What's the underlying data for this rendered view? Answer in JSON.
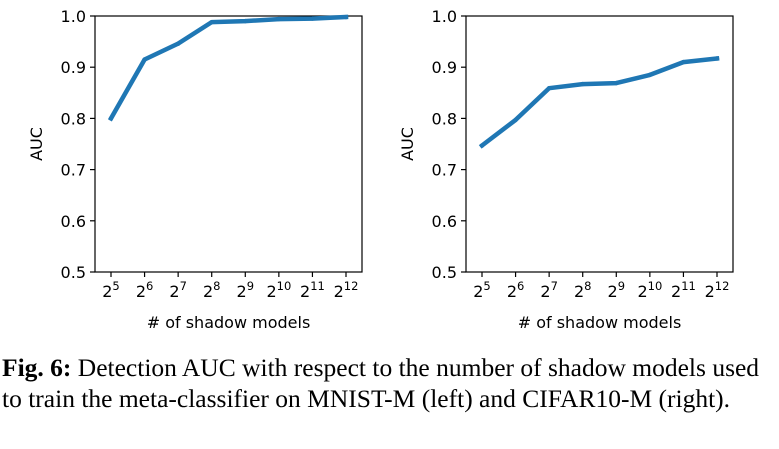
{
  "chart_data": [
    {
      "type": "line",
      "panel": "left",
      "x_ticks": [
        {
          "base": "2",
          "exp": "5"
        },
        {
          "base": "2",
          "exp": "6"
        },
        {
          "base": "2",
          "exp": "7"
        },
        {
          "base": "2",
          "exp": "8"
        },
        {
          "base": "2",
          "exp": "9"
        },
        {
          "base": "2",
          "exp": "10"
        },
        {
          "base": "2",
          "exp": "11"
        },
        {
          "base": "2",
          "exp": "12"
        }
      ],
      "x": [
        32,
        64,
        128,
        256,
        512,
        1024,
        2048,
        4096
      ],
      "values": [
        0.8,
        0.915,
        0.946,
        0.988,
        0.99,
        0.994,
        0.995,
        0.998
      ],
      "xlabel": "# of shadow models",
      "ylabel": "AUC",
      "ylim": [
        0.5,
        1.0
      ],
      "y_ticks": [
        "0.5",
        "0.6",
        "0.7",
        "0.8",
        "0.9",
        "1.0"
      ],
      "x_scale": "log2",
      "line_color": "#1f77b4",
      "grid": false
    },
    {
      "type": "line",
      "panel": "right",
      "x_ticks": [
        {
          "base": "2",
          "exp": "5"
        },
        {
          "base": "2",
          "exp": "6"
        },
        {
          "base": "2",
          "exp": "7"
        },
        {
          "base": "2",
          "exp": "8"
        },
        {
          "base": "2",
          "exp": "9"
        },
        {
          "base": "2",
          "exp": "10"
        },
        {
          "base": "2",
          "exp": "11"
        },
        {
          "base": "2",
          "exp": "12"
        }
      ],
      "x": [
        32,
        64,
        128,
        256,
        512,
        1024,
        2048,
        4096
      ],
      "values": [
        0.747,
        0.797,
        0.859,
        0.867,
        0.869,
        0.885,
        0.91,
        0.917
      ],
      "xlabel": "# of shadow models",
      "ylabel": "AUC",
      "ylim": [
        0.5,
        1.0
      ],
      "y_ticks": [
        "0.5",
        "0.6",
        "0.7",
        "0.8",
        "0.9",
        "1.0"
      ],
      "x_scale": "log2",
      "line_color": "#1f77b4",
      "grid": false
    }
  ],
  "caption": {
    "label": "Fig. 6:",
    "text": " Detection AUC with respect to the number of shadow models used to train the meta-classifier on MNIST-M (left) and CIFAR10-M (right)."
  }
}
